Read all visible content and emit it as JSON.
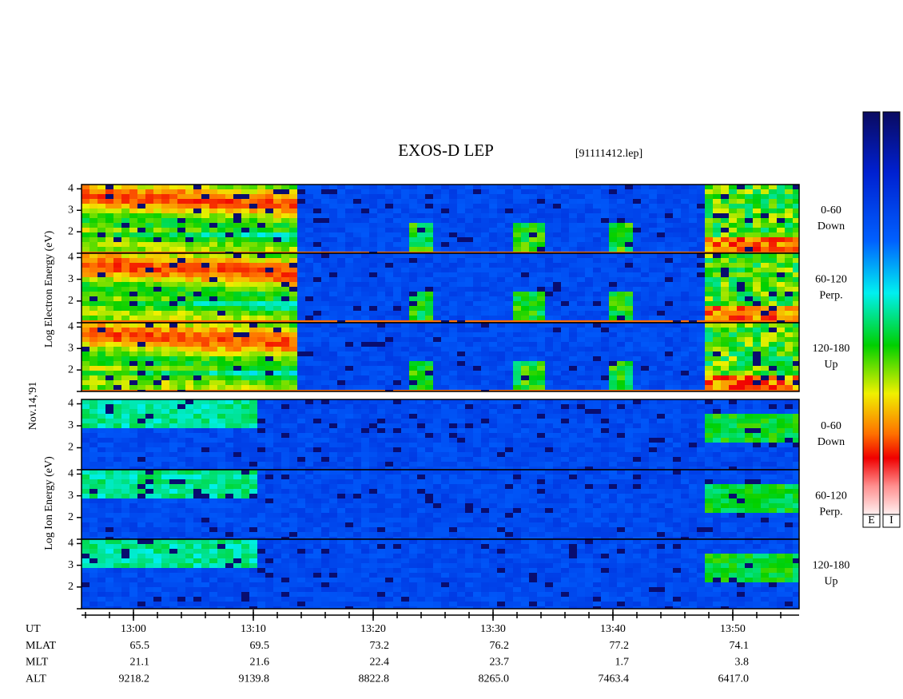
{
  "chart_data": {
    "type": "spectrogram",
    "title": "EXOS-D LEP",
    "subtitle": "[91111412.lep]",
    "date": "Nov.14,'91",
    "ylim": [
      1,
      4.2
    ],
    "yticks": [
      2,
      3,
      4
    ],
    "groups": [
      {
        "axis_label": "Log Electron Energy (eV)",
        "panels": [
          {
            "angle": "0-60",
            "direction": "Down"
          },
          {
            "angle": "60-120",
            "direction": "Perp."
          },
          {
            "angle": "120-180",
            "direction": "Up"
          }
        ]
      },
      {
        "axis_label": "Log Ion Energy (eV)",
        "panels": [
          {
            "angle": "0-60",
            "direction": "Down"
          },
          {
            "angle": "60-120",
            "direction": "Perp."
          },
          {
            "angle": "120-180",
            "direction": "Up"
          }
        ]
      }
    ],
    "ephemeris": [
      {
        "name": "UT",
        "values": [
          "13:00",
          "13:10",
          "13:20",
          "13:30",
          "13:40",
          "13:50"
        ]
      },
      {
        "name": "MLAT",
        "values": [
          "65.5",
          "69.5",
          "73.2",
          "76.2",
          "77.2",
          "74.1"
        ]
      },
      {
        "name": "MLT",
        "values": [
          "21.1",
          "21.6",
          "22.4",
          "23.7",
          "1.7",
          "3.8"
        ]
      },
      {
        "name": "ALT",
        "values": [
          "9218.2",
          "9139.8",
          "8822.8",
          "8265.0",
          "7463.4",
          "6417.0"
        ]
      }
    ],
    "colorbars": [
      "E",
      "I"
    ]
  }
}
